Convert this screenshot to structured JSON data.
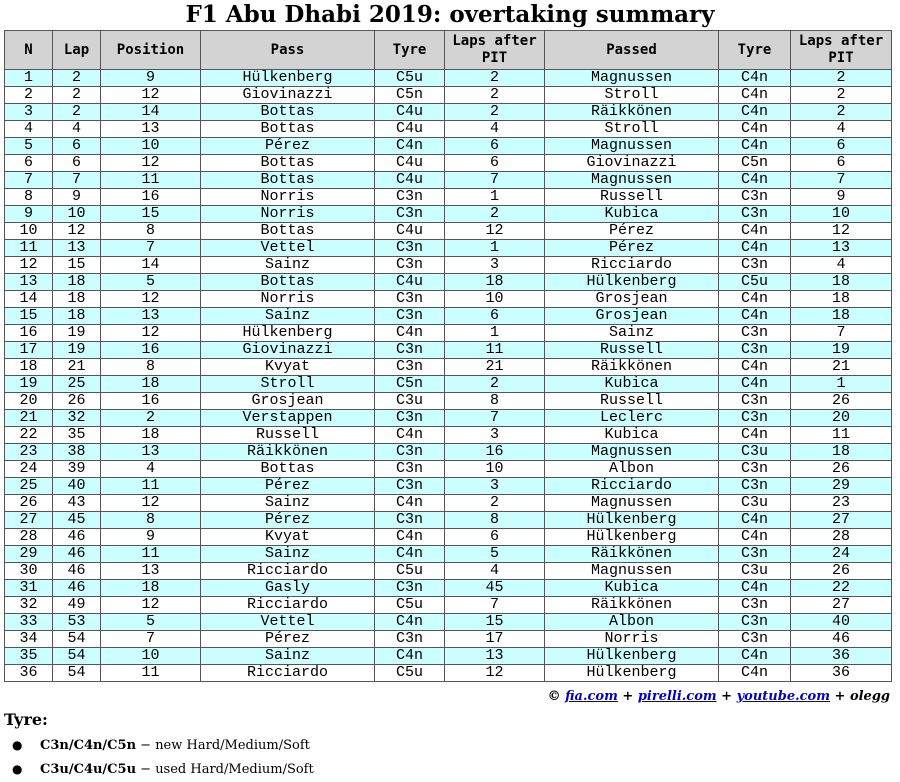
{
  "title": "F1 Abu Dhabi 2019: overtaking summary",
  "columns": [
    "N",
    "Lap",
    "Position",
    "Pass",
    "Tyre",
    "Laps after PIT",
    "Passed",
    "Tyre",
    "Laps after PIT"
  ],
  "rows": [
    [
      "1",
      "2",
      "9",
      "Hülkenberg",
      "C5u",
      "2",
      "Magnussen",
      "C4n",
      "2"
    ],
    [
      "2",
      "2",
      "12",
      "Giovinazzi",
      "C5n",
      "2",
      "Stroll",
      "C4n",
      "2"
    ],
    [
      "3",
      "2",
      "14",
      "Bottas",
      "C4u",
      "2",
      "Räikkönen",
      "C4n",
      "2"
    ],
    [
      "4",
      "4",
      "13",
      "Bottas",
      "C4u",
      "4",
      "Stroll",
      "C4n",
      "4"
    ],
    [
      "5",
      "6",
      "10",
      "Pérez",
      "C4n",
      "6",
      "Magnussen",
      "C4n",
      "6"
    ],
    [
      "6",
      "6",
      "12",
      "Bottas",
      "C4u",
      "6",
      "Giovinazzi",
      "C5n",
      "6"
    ],
    [
      "7",
      "7",
      "11",
      "Bottas",
      "C4u",
      "7",
      "Magnussen",
      "C4n",
      "7"
    ],
    [
      "8",
      "9",
      "16",
      "Norris",
      "C3n",
      "1",
      "Russell",
      "C3n",
      "9"
    ],
    [
      "9",
      "10",
      "15",
      "Norris",
      "C3n",
      "2",
      "Kubica",
      "C3n",
      "10"
    ],
    [
      "10",
      "12",
      "8",
      "Bottas",
      "C4u",
      "12",
      "Pérez",
      "C4n",
      "12"
    ],
    [
      "11",
      "13",
      "7",
      "Vettel",
      "C3n",
      "1",
      "Pérez",
      "C4n",
      "13"
    ],
    [
      "12",
      "15",
      "14",
      "Sainz",
      "C3n",
      "3",
      "Ricciardo",
      "C3n",
      "4"
    ],
    [
      "13",
      "18",
      "5",
      "Bottas",
      "C4u",
      "18",
      "Hülkenberg",
      "C5u",
      "18"
    ],
    [
      "14",
      "18",
      "12",
      "Norris",
      "C3n",
      "10",
      "Grosjean",
      "C4n",
      "18"
    ],
    [
      "15",
      "18",
      "13",
      "Sainz",
      "C3n",
      "6",
      "Grosjean",
      "C4n",
      "18"
    ],
    [
      "16",
      "19",
      "12",
      "Hülkenberg",
      "C4n",
      "1",
      "Sainz",
      "C3n",
      "7"
    ],
    [
      "17",
      "19",
      "16",
      "Giovinazzi",
      "C3n",
      "11",
      "Russell",
      "C3n",
      "19"
    ],
    [
      "18",
      "21",
      "8",
      "Kvyat",
      "C3n",
      "21",
      "Räikkönen",
      "C4n",
      "21"
    ],
    [
      "19",
      "25",
      "18",
      "Stroll",
      "C5n",
      "2",
      "Kubica",
      "C4n",
      "1"
    ],
    [
      "20",
      "26",
      "16",
      "Grosjean",
      "C3u",
      "8",
      "Russell",
      "C3n",
      "26"
    ],
    [
      "21",
      "32",
      "2",
      "Verstappen",
      "C3n",
      "7",
      "Leclerc",
      "C3n",
      "20"
    ],
    [
      "22",
      "35",
      "18",
      "Russell",
      "C4n",
      "3",
      "Kubica",
      "C4n",
      "11"
    ],
    [
      "23",
      "38",
      "13",
      "Räikkönen",
      "C3n",
      "16",
      "Magnussen",
      "C3u",
      "18"
    ],
    [
      "24",
      "39",
      "4",
      "Bottas",
      "C3n",
      "10",
      "Albon",
      "C3n",
      "26"
    ],
    [
      "25",
      "40",
      "11",
      "Pérez",
      "C3n",
      "3",
      "Ricciardo",
      "C3n",
      "29"
    ],
    [
      "26",
      "43",
      "12",
      "Sainz",
      "C4n",
      "2",
      "Magnussen",
      "C3u",
      "23"
    ],
    [
      "27",
      "45",
      "8",
      "Pérez",
      "C3n",
      "8",
      "Hülkenberg",
      "C4n",
      "27"
    ],
    [
      "28",
      "46",
      "9",
      "Kvyat",
      "C4n",
      "6",
      "Hülkenberg",
      "C4n",
      "28"
    ],
    [
      "29",
      "46",
      "11",
      "Sainz",
      "C4n",
      "5",
      "Räikkönen",
      "C3n",
      "24"
    ],
    [
      "30",
      "46",
      "13",
      "Ricciardo",
      "C5u",
      "4",
      "Magnussen",
      "C3u",
      "26"
    ],
    [
      "31",
      "46",
      "18",
      "Gasly",
      "C3n",
      "45",
      "Kubica",
      "C4n",
      "22"
    ],
    [
      "32",
      "49",
      "12",
      "Ricciardo",
      "C5u",
      "7",
      "Räikkönen",
      "C3n",
      "27"
    ],
    [
      "33",
      "53",
      "5",
      "Vettel",
      "C4n",
      "15",
      "Albon",
      "C3n",
      "40"
    ],
    [
      "34",
      "54",
      "7",
      "Pérez",
      "C3n",
      "17",
      "Norris",
      "C3n",
      "46"
    ],
    [
      "35",
      "54",
      "10",
      "Sainz",
      "C4n",
      "13",
      "Hülkenberg",
      "C4n",
      "36"
    ],
    [
      "36",
      "54",
      "11",
      "Ricciardo",
      "C5u",
      "12",
      "Hülkenberg",
      "C4n",
      "36"
    ]
  ],
  "credits": {
    "prefix": "© ",
    "links": [
      "fia.com",
      "pirelli.com",
      "youtube.com"
    ],
    "sep": " + ",
    "author": "olegg"
  },
  "legend": {
    "title": "Tyre:",
    "items": [
      {
        "codes": "C3n/C4n/C5n",
        "desc": " − new Hard/Medium/Soft"
      },
      {
        "codes": "C3u/C4u/C5u",
        "desc": " − used Hard/Medium/Soft"
      }
    ]
  }
}
